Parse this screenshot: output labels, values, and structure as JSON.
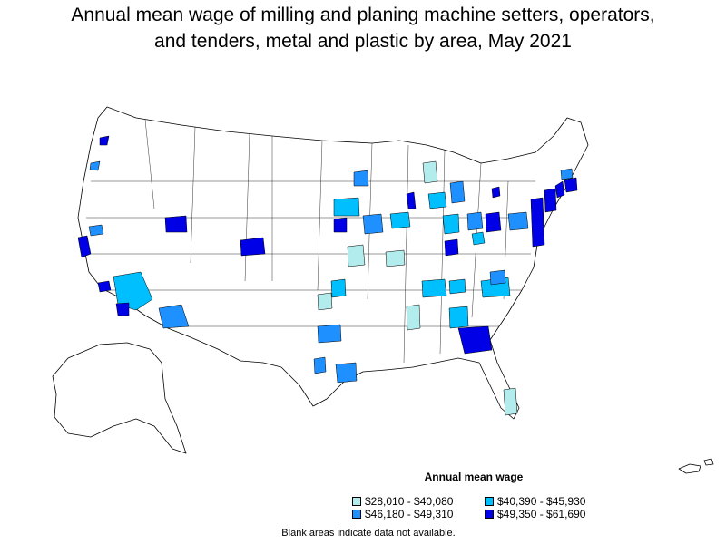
{
  "title": {
    "line1": "Annual mean wage of milling and planing machine setters, operators,",
    "line2": "and tenders, metal and plastic by area, May 2021"
  },
  "legend": {
    "title": "Annual mean wage",
    "items": [
      {
        "label": "$28,010 - $40,080",
        "color": "#b3ecec"
      },
      {
        "label": "$40,390 - $45,930",
        "color": "#00bfff"
      },
      {
        "label": "$46,180 - $49,310",
        "color": "#1e90ff"
      },
      {
        "label": "$49,350 - $61,690",
        "color": "#0000e6"
      }
    ]
  },
  "footnote": "Blank areas indicate data not available."
}
